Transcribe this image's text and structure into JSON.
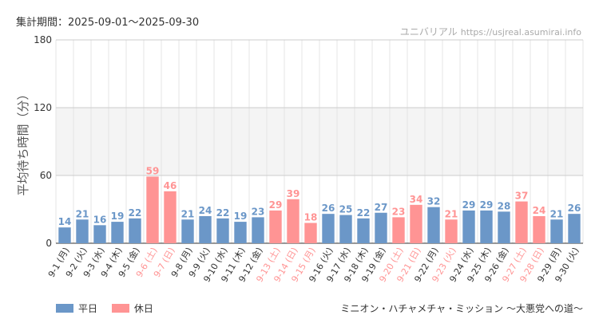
{
  "period": "集計期間：2025-09-01〜2025-09-30",
  "watermark": {
    "name": "ユニバリアル",
    "url": "https://usjreal.asumirai.info"
  },
  "footer": "ミニオン・ハチャメチャ・ミッション 〜大悪党への道〜",
  "colors": {
    "weekday": "#6b97c8",
    "holiday": "#ff9494",
    "grid": "#e5e5e5",
    "band": "#f4f4f4"
  },
  "chart_data": {
    "type": "bar",
    "ylabel": "平均待ち時間（分）",
    "ylim": [
      0,
      180
    ],
    "yticks": [
      0,
      60,
      120,
      180
    ],
    "grid": true,
    "legend_position": "bottom-left",
    "legend": [
      {
        "name": "平日",
        "kind": "weekday"
      },
      {
        "name": "休日",
        "kind": "holiday"
      }
    ],
    "categories": [
      "9-1 (月)",
      "9-2 (火)",
      "9-3 (水)",
      "9-4 (木)",
      "9-5 (金)",
      "9-6 (土)",
      "9-7 (日)",
      "9-8 (月)",
      "9-9 (火)",
      "9-10 (水)",
      "9-11 (木)",
      "9-12 (金)",
      "9-13 (土)",
      "9-14 (日)",
      "9-15 (月)",
      "9-16 (火)",
      "9-17 (水)",
      "9-18 (木)",
      "9-19 (金)",
      "9-20 (土)",
      "9-21 (日)",
      "9-22 (月)",
      "9-23 (火)",
      "9-24 (水)",
      "9-25 (木)",
      "9-26 (金)",
      "9-27 (土)",
      "9-28 (日)",
      "9-29 (月)",
      "9-30 (火)"
    ],
    "values": [
      14,
      21,
      16,
      19,
      22,
      59,
      46,
      21,
      24,
      22,
      19,
      23,
      29,
      39,
      18,
      26,
      25,
      22,
      27,
      23,
      34,
      32,
      21,
      29,
      29,
      28,
      37,
      24,
      21,
      26
    ],
    "holiday": [
      false,
      false,
      false,
      false,
      false,
      true,
      true,
      false,
      false,
      false,
      false,
      false,
      true,
      true,
      true,
      false,
      false,
      false,
      false,
      true,
      true,
      false,
      true,
      false,
      false,
      false,
      true,
      true,
      false,
      false
    ]
  }
}
